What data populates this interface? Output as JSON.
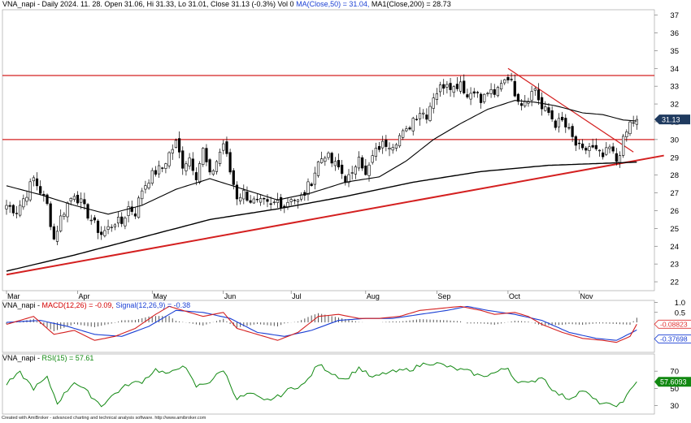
{
  "header": {
    "price": {
      "prefix": "VNA_napi - Daily 2024. 11. 28. Open 31.06, Hi 31.33, Lo 31.01, Close 31.13 (-0.3%) Vol 0",
      "ma50": "MA(Close,50) = 31.04,",
      "ma200": "MA1(Close,200) = 28.73"
    },
    "macd": {
      "prefix": "VNA_napi -",
      "macd": "MACD(12,26) = -0.09,",
      "signal": "Signal(12,26,9) = -0.38"
    },
    "rsi": {
      "prefix": "VNA_napi -",
      "rsi": "RSI(15) = 57.61"
    }
  },
  "footer": "Created with AmiBroker - advanced charting and technical analysis software. http://www.amibroker.com",
  "colors": {
    "up": "#ffffff",
    "down": "#000000",
    "ma50": "#000000",
    "ma200": "#000000",
    "trend": "#d42020",
    "macd": "#d42020",
    "signal": "#1a3fd4",
    "hist": "#555555",
    "rsi": "#118811",
    "price_tag": "#1f3a5f",
    "macd_tag": "#e03030",
    "signal_tag": "#1a3fd4",
    "rsi_tag": "#118811"
  },
  "chart_data": [
    {
      "type": "candlestick",
      "panel": "price",
      "x_labels": [
        "Mar",
        "Apr",
        "May",
        "Jun",
        "Jul",
        "Aug",
        "Sep",
        "Oct",
        "Nov"
      ],
      "x_label_index": [
        0,
        21,
        43,
        64,
        84,
        106,
        127,
        148,
        169
      ],
      "ylim": [
        21.5,
        37.3
      ],
      "yticks": [
        22,
        23,
        24,
        25,
        26,
        27,
        28,
        29,
        30,
        31,
        32,
        33,
        34,
        35,
        36,
        37
      ],
      "last_value_label": "31.13",
      "last_value": 31.13,
      "close_anchors": [
        [
          0,
          26.3
        ],
        [
          3,
          26.0
        ],
        [
          6,
          27.0
        ],
        [
          8,
          27.8
        ],
        [
          10,
          27.1
        ],
        [
          12,
          26.3
        ],
        [
          14,
          24.4
        ],
        [
          16,
          25.6
        ],
        [
          18,
          26.4
        ],
        [
          20,
          27.0
        ],
        [
          22,
          26.4
        ],
        [
          24,
          25.8
        ],
        [
          26,
          25.2
        ],
        [
          28,
          24.7
        ],
        [
          30,
          25.0
        ],
        [
          32,
          25.4
        ],
        [
          34,
          25.3
        ],
        [
          36,
          26.2
        ],
        [
          38,
          25.9
        ],
        [
          40,
          27.2
        ],
        [
          42,
          27.8
        ],
        [
          44,
          28.2
        ],
        [
          46,
          28.4
        ],
        [
          48,
          29.2
        ],
        [
          50,
          29.8
        ],
        [
          52,
          28.6
        ],
        [
          54,
          29.0
        ],
        [
          56,
          28.0
        ],
        [
          58,
          29.4
        ],
        [
          60,
          27.9
        ],
        [
          62,
          28.8
        ],
        [
          64,
          29.8
        ],
        [
          66,
          28.2
        ],
        [
          68,
          26.8
        ],
        [
          70,
          27.0
        ],
        [
          72,
          26.6
        ],
        [
          74,
          26.4
        ],
        [
          76,
          26.4
        ],
        [
          78,
          26.2
        ],
        [
          80,
          26.6
        ],
        [
          82,
          26.3
        ],
        [
          84,
          26.8
        ],
        [
          86,
          26.5
        ],
        [
          88,
          27.0
        ],
        [
          90,
          27.7
        ],
        [
          92,
          28.7
        ],
        [
          94,
          29.2
        ],
        [
          96,
          28.7
        ],
        [
          98,
          28.4
        ],
        [
          100,
          27.8
        ],
        [
          102,
          27.9
        ],
        [
          104,
          29.3
        ],
        [
          106,
          27.9
        ],
        [
          108,
          29.0
        ],
        [
          110,
          29.6
        ],
        [
          112,
          29.8
        ],
        [
          114,
          29.8
        ],
        [
          116,
          30.2
        ],
        [
          118,
          30.4
        ],
        [
          120,
          31.2
        ],
        [
          122,
          31.6
        ],
        [
          124,
          31.4
        ],
        [
          126,
          32.5
        ],
        [
          128,
          32.9
        ],
        [
          130,
          33.3
        ],
        [
          132,
          32.9
        ],
        [
          134,
          33.3
        ],
        [
          136,
          32.4
        ],
        [
          138,
          32.9
        ],
        [
          140,
          32.1
        ],
        [
          142,
          32.7
        ],
        [
          144,
          32.4
        ],
        [
          146,
          33.3
        ],
        [
          148,
          33.6
        ],
        [
          150,
          32.7
        ],
        [
          152,
          32.1
        ],
        [
          154,
          32.4
        ],
        [
          156,
          32.9
        ],
        [
          158,
          31.7
        ],
        [
          160,
          31.5
        ],
        [
          162,
          30.9
        ],
        [
          164,
          31.0
        ],
        [
          166,
          30.4
        ],
        [
          168,
          29.7
        ],
        [
          170,
          29.3
        ],
        [
          172,
          29.6
        ],
        [
          174,
          29.3
        ],
        [
          176,
          29.0
        ],
        [
          178,
          29.5
        ],
        [
          180,
          28.8
        ],
        [
          182,
          29.9
        ],
        [
          184,
          30.9
        ],
        [
          186,
          31.13
        ]
      ],
      "ma50_anchors": [
        [
          0,
          27.4
        ],
        [
          10,
          26.9
        ],
        [
          20,
          26.3
        ],
        [
          30,
          25.8
        ],
        [
          40,
          26.3
        ],
        [
          50,
          27.2
        ],
        [
          60,
          27.8
        ],
        [
          70,
          27.2
        ],
        [
          80,
          26.6
        ],
        [
          90,
          27.0
        ],
        [
          100,
          27.6
        ],
        [
          110,
          27.9
        ],
        [
          118,
          28.8
        ],
        [
          126,
          30.0
        ],
        [
          134,
          30.9
        ],
        [
          142,
          31.7
        ],
        [
          150,
          32.2
        ],
        [
          156,
          32.1
        ],
        [
          162,
          31.9
        ],
        [
          170,
          31.5
        ],
        [
          176,
          31.4
        ],
        [
          182,
          31.1
        ],
        [
          186,
          31.04
        ]
      ],
      "ma200_anchors": [
        [
          0,
          22.6
        ],
        [
          20,
          23.5
        ],
        [
          40,
          24.5
        ],
        [
          60,
          25.5
        ],
        [
          80,
          26.1
        ],
        [
          100,
          26.8
        ],
        [
          120,
          27.6
        ],
        [
          140,
          28.2
        ],
        [
          160,
          28.55
        ],
        [
          186,
          28.73
        ]
      ],
      "resistance_lines": [
        33.6,
        30.0
      ],
      "support_trend": [
        [
          0,
          22.4
        ],
        [
          194,
          29.1
        ]
      ],
      "falling_trend": [
        [
          148,
          34.0
        ],
        [
          185,
          29.3
        ]
      ]
    },
    {
      "type": "line",
      "panel": "macd",
      "ylim": [
        -1.5,
        1.1
      ],
      "yticks": [
        1.0,
        0.5
      ],
      "zero_level": 0,
      "macd_label": "-0.08823",
      "signal_label": "-0.37698",
      "macd_anchors": [
        [
          0,
          -0.1
        ],
        [
          8,
          0.3
        ],
        [
          14,
          -0.6
        ],
        [
          20,
          -0.4
        ],
        [
          26,
          -0.9
        ],
        [
          32,
          -0.7
        ],
        [
          38,
          -0.3
        ],
        [
          44,
          0.4
        ],
        [
          48,
          0.8
        ],
        [
          52,
          0.6
        ],
        [
          58,
          0.3
        ],
        [
          64,
          0.5
        ],
        [
          68,
          -0.3
        ],
        [
          74,
          -0.6
        ],
        [
          80,
          -0.9
        ],
        [
          86,
          -0.5
        ],
        [
          92,
          0.3
        ],
        [
          98,
          0.4
        ],
        [
          104,
          0.2
        ],
        [
          110,
          0.2
        ],
        [
          116,
          0.3
        ],
        [
          122,
          0.6
        ],
        [
          128,
          0.7
        ],
        [
          134,
          0.8
        ],
        [
          140,
          0.6
        ],
        [
          144,
          0.4
        ],
        [
          150,
          0.5
        ],
        [
          154,
          0.3
        ],
        [
          158,
          -0.1
        ],
        [
          164,
          -0.5
        ],
        [
          170,
          -0.8
        ],
        [
          176,
          -0.9
        ],
        [
          180,
          -1.0
        ],
        [
          184,
          -0.7
        ],
        [
          186,
          -0.09
        ]
      ],
      "signal_anchors": [
        [
          0,
          0.0
        ],
        [
          10,
          0.1
        ],
        [
          18,
          -0.2
        ],
        [
          26,
          -0.6
        ],
        [
          34,
          -0.7
        ],
        [
          42,
          -0.2
        ],
        [
          50,
          0.6
        ],
        [
          58,
          0.5
        ],
        [
          66,
          0.2
        ],
        [
          74,
          -0.5
        ],
        [
          82,
          -0.7
        ],
        [
          90,
          -0.4
        ],
        [
          98,
          0.1
        ],
        [
          106,
          0.2
        ],
        [
          114,
          0.2
        ],
        [
          122,
          0.4
        ],
        [
          130,
          0.6
        ],
        [
          136,
          0.8
        ],
        [
          142,
          0.6
        ],
        [
          150,
          0.4
        ],
        [
          158,
          0.1
        ],
        [
          166,
          -0.5
        ],
        [
          174,
          -0.8
        ],
        [
          180,
          -0.9
        ],
        [
          186,
          -0.38
        ]
      ]
    },
    {
      "type": "line",
      "panel": "rsi",
      "ylim": [
        20,
        90
      ],
      "yticks": [
        70,
        50,
        30
      ],
      "last_value_label": "57.6093",
      "rsi_anchors": [
        [
          0,
          55
        ],
        [
          4,
          68
        ],
        [
          8,
          50
        ],
        [
          12,
          62
        ],
        [
          15,
          33
        ],
        [
          20,
          58
        ],
        [
          24,
          45
        ],
        [
          28,
          30
        ],
        [
          32,
          44
        ],
        [
          36,
          55
        ],
        [
          40,
          58
        ],
        [
          44,
          72
        ],
        [
          48,
          66
        ],
        [
          52,
          78
        ],
        [
          56,
          52
        ],
        [
          60,
          58
        ],
        [
          64,
          72
        ],
        [
          68,
          38
        ],
        [
          72,
          44
        ],
        [
          76,
          35
        ],
        [
          80,
          40
        ],
        [
          84,
          50
        ],
        [
          88,
          55
        ],
        [
          92,
          78
        ],
        [
          96,
          68
        ],
        [
          100,
          60
        ],
        [
          104,
          74
        ],
        [
          108,
          62
        ],
        [
          112,
          68
        ],
        [
          116,
          70
        ],
        [
          120,
          73
        ],
        [
          124,
          80
        ],
        [
          128,
          78
        ],
        [
          132,
          73
        ],
        [
          136,
          70
        ],
        [
          140,
          64
        ],
        [
          144,
          68
        ],
        [
          148,
          74
        ],
        [
          150,
          60
        ],
        [
          154,
          55
        ],
        [
          158,
          64
        ],
        [
          162,
          45
        ],
        [
          166,
          38
        ],
        [
          170,
          48
        ],
        [
          174,
          35
        ],
        [
          178,
          30
        ],
        [
          182,
          32
        ],
        [
          184,
          50
        ],
        [
          186,
          57.61
        ]
      ]
    }
  ]
}
